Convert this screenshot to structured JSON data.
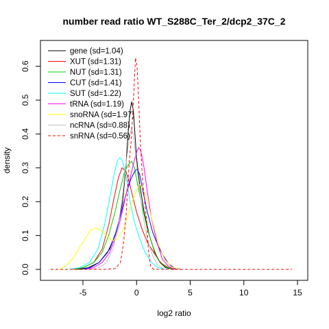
{
  "chart_data": {
    "type": "line",
    "title": "number read ratio WT_S288C_Ter_2/dcp2_37C_2",
    "xlabel": "log2 ratio",
    "ylabel": "density",
    "xlim": [
      -8,
      15
    ],
    "ylim": [
      0,
      0.65
    ],
    "xticks": [
      -5,
      0,
      5,
      10,
      15
    ],
    "xtick_labels": [
      "-5",
      "0",
      "5",
      "10",
      "15"
    ],
    "yticks": [
      0.0,
      0.1,
      0.2,
      0.3,
      0.4,
      0.5,
      0.6
    ],
    "ytick_labels": [
      "0.0",
      "0.1",
      "0.2",
      "0.3",
      "0.4",
      "0.5",
      "0.6"
    ],
    "legend_position": "top-left",
    "grid": false,
    "series": [
      {
        "name": "gene (sd=1.04)",
        "color": "#000000",
        "dash": false,
        "points": [
          [
            -5.5,
            0
          ],
          [
            -4.5,
            0.005
          ],
          [
            -3.5,
            0.02
          ],
          [
            -2.5,
            0.06
          ],
          [
            -1.8,
            0.12
          ],
          [
            -1.3,
            0.2
          ],
          [
            -1.0,
            0.3
          ],
          [
            -0.8,
            0.4
          ],
          [
            -0.6,
            0.47
          ],
          [
            -0.45,
            0.495
          ],
          [
            -0.3,
            0.47
          ],
          [
            -0.15,
            0.4
          ],
          [
            0,
            0.33
          ],
          [
            0.3,
            0.25
          ],
          [
            0.7,
            0.17
          ],
          [
            1.2,
            0.1
          ],
          [
            1.7,
            0.05
          ],
          [
            2.2,
            0.02
          ],
          [
            2.7,
            0.005
          ],
          [
            3.5,
            0
          ]
        ]
      },
      {
        "name": "XUT (sd=1.31)",
        "color": "#ff0000",
        "dash": false,
        "points": [
          [
            -6,
            0
          ],
          [
            -5,
            0.005
          ],
          [
            -4,
            0.02
          ],
          [
            -3.2,
            0.06
          ],
          [
            -2.6,
            0.13
          ],
          [
            -2.1,
            0.21
          ],
          [
            -1.7,
            0.27
          ],
          [
            -1.35,
            0.3
          ],
          [
            -1.0,
            0.29
          ],
          [
            -0.7,
            0.26
          ],
          [
            -0.4,
            0.22
          ],
          [
            0,
            0.17
          ],
          [
            0.5,
            0.12
          ],
          [
            1.0,
            0.08
          ],
          [
            1.6,
            0.05
          ],
          [
            2.2,
            0.02
          ],
          [
            3,
            0.005
          ],
          [
            3.8,
            0
          ]
        ]
      },
      {
        "name": "NUT (sd=1.31)",
        "color": "#00cc00",
        "dash": false,
        "points": [
          [
            -5.8,
            0
          ],
          [
            -5,
            0.005
          ],
          [
            -4,
            0.02
          ],
          [
            -3.2,
            0.05
          ],
          [
            -2.6,
            0.1
          ],
          [
            -2.0,
            0.17
          ],
          [
            -1.5,
            0.24
          ],
          [
            -1.1,
            0.29
          ],
          [
            -0.75,
            0.31
          ],
          [
            -0.45,
            0.32
          ],
          [
            -0.2,
            0.3
          ],
          [
            0.1,
            0.25
          ],
          [
            0.5,
            0.19
          ],
          [
            1.0,
            0.12
          ],
          [
            1.5,
            0.07
          ],
          [
            2.0,
            0.03
          ],
          [
            2.6,
            0.01
          ],
          [
            3.4,
            0
          ]
        ]
      },
      {
        "name": "CUT (sd=1.41)",
        "color": "#0000ff",
        "dash": false,
        "points": [
          [
            -5.2,
            0
          ],
          [
            -4.3,
            0.005
          ],
          [
            -3.5,
            0.02
          ],
          [
            -2.7,
            0.05
          ],
          [
            -2.0,
            0.1
          ],
          [
            -1.5,
            0.16
          ],
          [
            -1.0,
            0.22
          ],
          [
            -0.5,
            0.27
          ],
          [
            -0.15,
            0.29
          ],
          [
            0.05,
            0.297
          ],
          [
            0.3,
            0.28
          ],
          [
            0.6,
            0.23
          ],
          [
            1.0,
            0.17
          ],
          [
            1.5,
            0.11
          ],
          [
            2.0,
            0.07
          ],
          [
            2.5,
            0.04
          ],
          [
            3.0,
            0.015
          ],
          [
            3.6,
            0.003
          ],
          [
            4.2,
            0
          ]
        ]
      },
      {
        "name": "SUT (sd=1.22)",
        "color": "#00ffff",
        "dash": false,
        "points": [
          [
            -6.3,
            0
          ],
          [
            -5.3,
            0.005
          ],
          [
            -4.4,
            0.02
          ],
          [
            -3.6,
            0.06
          ],
          [
            -3.0,
            0.13
          ],
          [
            -2.5,
            0.21
          ],
          [
            -2.1,
            0.28
          ],
          [
            -1.8,
            0.32
          ],
          [
            -1.55,
            0.33
          ],
          [
            -1.3,
            0.32
          ],
          [
            -1.0,
            0.28
          ],
          [
            -0.6,
            0.2
          ],
          [
            -0.2,
            0.14
          ],
          [
            0.3,
            0.09
          ],
          [
            0.8,
            0.05
          ],
          [
            1.4,
            0.02
          ],
          [
            2.0,
            0.005
          ],
          [
            2.8,
            0
          ]
        ]
      },
      {
        "name": "tRNA (sd=1.19)",
        "color": "#ff00ff",
        "dash": false,
        "points": [
          [
            -4.8,
            0
          ],
          [
            -4,
            0.005
          ],
          [
            -3.2,
            0.02
          ],
          [
            -2.5,
            0.05
          ],
          [
            -1.9,
            0.1
          ],
          [
            -1.4,
            0.16
          ],
          [
            -1.0,
            0.22
          ],
          [
            -0.6,
            0.27
          ],
          [
            -0.3,
            0.31
          ],
          [
            0,
            0.345
          ],
          [
            0.2,
            0.36
          ],
          [
            0.4,
            0.35
          ],
          [
            0.7,
            0.3
          ],
          [
            1.0,
            0.23
          ],
          [
            1.4,
            0.15
          ],
          [
            1.9,
            0.08
          ],
          [
            2.4,
            0.03
          ],
          [
            3.0,
            0.008
          ],
          [
            3.6,
            0
          ]
        ]
      },
      {
        "name": "snoRNA (sd=1.97)",
        "color": "#ffff00",
        "dash": false,
        "points": [
          [
            -7.2,
            0
          ],
          [
            -6.6,
            0.01
          ],
          [
            -6,
            0.03
          ],
          [
            -5.4,
            0.06
          ],
          [
            -4.8,
            0.09
          ],
          [
            -4.3,
            0.115
          ],
          [
            -3.8,
            0.122
          ],
          [
            -3.3,
            0.115
          ],
          [
            -2.8,
            0.1
          ],
          [
            -2.3,
            0.085
          ],
          [
            -1.8,
            0.09
          ],
          [
            -1.2,
            0.12
          ],
          [
            -0.7,
            0.17
          ],
          [
            -0.3,
            0.21
          ],
          [
            0,
            0.235
          ],
          [
            0.3,
            0.25
          ],
          [
            0.6,
            0.24
          ],
          [
            1.0,
            0.2
          ],
          [
            1.5,
            0.14
          ],
          [
            2.0,
            0.08
          ],
          [
            2.6,
            0.03
          ],
          [
            3.2,
            0.008
          ],
          [
            4,
            0
          ]
        ]
      },
      {
        "name": "ncRNA (sd=0.88)",
        "color": "#bebebe",
        "dash": false,
        "points": [
          [
            -4.2,
            0
          ],
          [
            -3.5,
            0.005
          ],
          [
            -2.8,
            0.02
          ],
          [
            -2.2,
            0.06
          ],
          [
            -1.7,
            0.13
          ],
          [
            -1.3,
            0.22
          ],
          [
            -1.0,
            0.31
          ],
          [
            -0.7,
            0.38
          ],
          [
            -0.5,
            0.415
          ],
          [
            -0.3,
            0.4
          ],
          [
            -0.1,
            0.34
          ],
          [
            0.2,
            0.25
          ],
          [
            0.6,
            0.16
          ],
          [
            1.0,
            0.09
          ],
          [
            1.5,
            0.04
          ],
          [
            2.0,
            0.012
          ],
          [
            2.6,
            0
          ]
        ]
      },
      {
        "name": "snRNA (sd=0.56)",
        "color": "#ff0000",
        "dash": true,
        "points": [
          [
            -8,
            0
          ],
          [
            -3,
            0
          ],
          [
            -2.0,
            0.002
          ],
          [
            -1.5,
            0.02
          ],
          [
            -1.2,
            0.08
          ],
          [
            -0.95,
            0.17
          ],
          [
            -0.8,
            0.26
          ],
          [
            -0.65,
            0.33
          ],
          [
            -0.5,
            0.38
          ],
          [
            -0.35,
            0.46
          ],
          [
            -0.2,
            0.56
          ],
          [
            -0.1,
            0.625
          ],
          [
            0.05,
            0.6
          ],
          [
            0.2,
            0.5
          ],
          [
            0.35,
            0.38
          ],
          [
            0.55,
            0.27
          ],
          [
            0.75,
            0.2
          ],
          [
            0.95,
            0.14
          ],
          [
            1.1,
            0.06
          ],
          [
            1.3,
            0.01
          ],
          [
            1.6,
            0
          ],
          [
            14.5,
            0
          ]
        ]
      }
    ]
  }
}
